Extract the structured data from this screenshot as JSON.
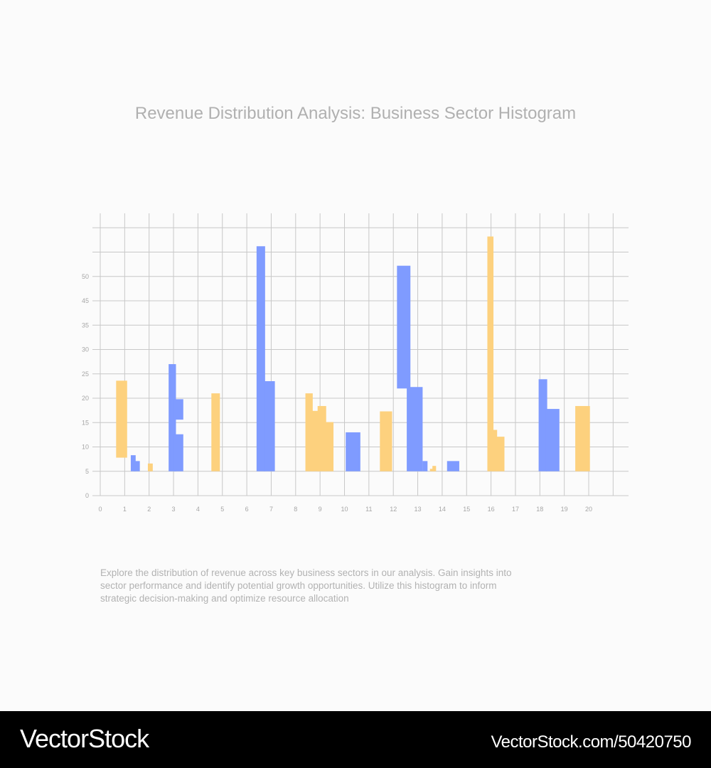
{
  "title": "Revenue Distribution Analysis: Business Sector Histogram",
  "description": "Explore the distribution of revenue across key business sectors in our analysis. Gain insights into sector performance and identify potential growth opportunities. Utilize this histogram to inform strategic decision-making and optimize resource allocation",
  "footer": {
    "brand": "VectorStock",
    "ref": "VectorStock.com/50420750"
  },
  "colors": {
    "series_a": "#fdd17e",
    "series_b": "#7f9bff",
    "grid": "#c8c8c8"
  },
  "chart_data": {
    "type": "bar",
    "x_ticks": [
      "0",
      "1",
      "2",
      "3",
      "4",
      "5",
      "6",
      "7",
      "8",
      "9",
      "10",
      "11",
      "12",
      "13",
      "14",
      "15",
      "16",
      "17",
      "18",
      "19",
      "20"
    ],
    "y_ticks": [
      "0",
      "5",
      "10",
      "15",
      "20",
      "25",
      "30",
      "35",
      "45",
      "50"
    ],
    "grid": true,
    "bars": [
      {
        "color": "#fdd17e",
        "x0": 0.65,
        "x1": 1.1,
        "y0": 7.8,
        "y1": 23.6
      },
      {
        "color": "#7f9bff",
        "x0": 1.25,
        "x1": 1.45,
        "y0": 5,
        "y1": 8.3
      },
      {
        "color": "#7f9bff",
        "x0": 1.38,
        "x1": 1.62,
        "y0": 5,
        "y1": 7.1
      },
      {
        "color": "#fdd17e",
        "x0": 1.95,
        "x1": 2.15,
        "y0": 5,
        "y1": 6.6
      },
      {
        "color": "#7f9bff",
        "x0": 2.8,
        "x1": 3.1,
        "y0": 5,
        "y1": 27
      },
      {
        "color": "#7f9bff",
        "x0": 3.0,
        "x1": 3.4,
        "y0": 15.6,
        "y1": 19.8
      },
      {
        "color": "#7f9bff",
        "x0": 3.0,
        "x1": 3.4,
        "y0": 5,
        "y1": 12.6
      },
      {
        "color": "#fdd17e",
        "x0": 4.55,
        "x1": 4.9,
        "y0": 5,
        "y1": 21
      },
      {
        "color": "#7f9bff",
        "x0": 6.4,
        "x1": 6.75,
        "y0": 5,
        "y1": 51.2
      },
      {
        "color": "#7f9bff",
        "x0": 6.7,
        "x1": 7.15,
        "y0": 5,
        "y1": 23.5
      },
      {
        "color": "#fdd17e",
        "x0": 8.4,
        "x1": 8.7,
        "y0": 5,
        "y1": 21
      },
      {
        "color": "#fdd17e",
        "x0": 8.65,
        "x1": 9.0,
        "y0": 5,
        "y1": 17.4
      },
      {
        "color": "#fdd17e",
        "x0": 8.9,
        "x1": 9.25,
        "y0": 5,
        "y1": 18.4
      },
      {
        "color": "#fdd17e",
        "x0": 9.2,
        "x1": 9.55,
        "y0": 5,
        "y1": 15.1
      },
      {
        "color": "#7f9bff",
        "x0": 10.05,
        "x1": 10.65,
        "y0": 5,
        "y1": 13
      },
      {
        "color": "#fdd17e",
        "x0": 11.45,
        "x1": 11.95,
        "y0": 5,
        "y1": 17.3
      },
      {
        "color": "#7f9bff",
        "x0": 12.15,
        "x1": 12.7,
        "y0": 22,
        "y1": 47.2
      },
      {
        "color": "#7f9bff",
        "x0": 12.55,
        "x1": 13.2,
        "y0": 5,
        "y1": 22.3
      },
      {
        "color": "#7f9bff",
        "x0": 13.2,
        "x1": 13.4,
        "y0": 5,
        "y1": 7.1
      },
      {
        "color": "#fdd17e",
        "x0": 13.5,
        "x1": 13.65,
        "y0": 5,
        "y1": 5.5
      },
      {
        "color": "#fdd17e",
        "x0": 13.6,
        "x1": 13.75,
        "y0": 5,
        "y1": 6.1
      },
      {
        "color": "#7f9bff",
        "x0": 14.2,
        "x1": 14.7,
        "y0": 5,
        "y1": 7.1
      },
      {
        "color": "#fdd17e",
        "x0": 15.85,
        "x1": 16.1,
        "y0": 5,
        "y1": 53.2
      },
      {
        "color": "#fdd17e",
        "x0": 16.05,
        "x1": 16.25,
        "y0": 5,
        "y1": 13.5
      },
      {
        "color": "#fdd17e",
        "x0": 16.2,
        "x1": 16.55,
        "y0": 5,
        "y1": 12.1
      },
      {
        "color": "#7f9bff",
        "x0": 17.95,
        "x1": 18.3,
        "y0": 5,
        "y1": 23.9
      },
      {
        "color": "#7f9bff",
        "x0": 18.25,
        "x1": 18.8,
        "y0": 5,
        "y1": 17.8
      },
      {
        "color": "#fdd17e",
        "x0": 19.45,
        "x1": 20.05,
        "y0": 5,
        "y1": 18.4
      }
    ]
  }
}
